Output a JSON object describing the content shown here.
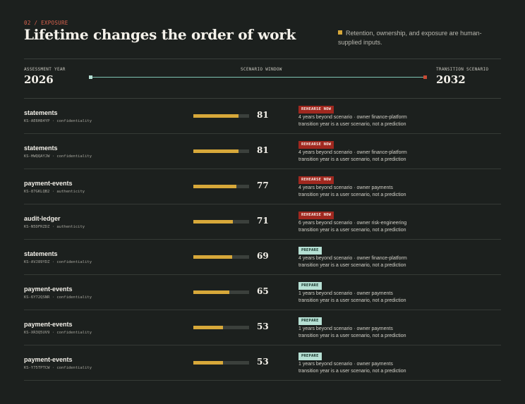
{
  "header": {
    "eyebrow": "02 / EXPOSURE",
    "title": "Lifetime changes the order of work",
    "note": "Retention, ownership, and exposure are human-supplied inputs."
  },
  "scenario": {
    "assessment_label": "ASSESSMENT YEAR",
    "assessment_year": "2026",
    "window_label": "SCENARIO WINDOW",
    "transition_label": "TRANSITION SCENARIO",
    "transition_year": "2032"
  },
  "colors": {
    "background": "#1c201e",
    "accent_amber": "#d7a83a",
    "rehearse_red": "#a0281f",
    "prepare_mint": "#b6e0d4"
  },
  "rows": [
    {
      "name": "statements",
      "meta": "KS-AE6H84YP · confidentiality",
      "score": "81",
      "level": 0.81,
      "badge": "REHEARSE NOW",
      "badge_type": "now",
      "line1": "4 years beyond scenario · owner finance-platform",
      "line2": "transition year is a user scenario, not a prediction"
    },
    {
      "name": "statements",
      "meta": "KS-HWQQAYJW · confidentiality",
      "score": "81",
      "level": 0.81,
      "badge": "REHEARSE NOW",
      "badge_type": "now",
      "line1": "4 years beyond scenario · owner finance-platform",
      "line2": "transition year is a user scenario, not a prediction"
    },
    {
      "name": "payment-events",
      "meta": "KS-87GKLQB2 · authenticity",
      "score": "77",
      "level": 0.77,
      "badge": "REHEARSE NOW",
      "badge_type": "now",
      "line1": "4 years beyond scenario · owner payments",
      "line2": "transition year is a user scenario, not a prediction"
    },
    {
      "name": "audit-ledger",
      "meta": "KS-N5DFRZDZ · authenticity",
      "score": "71",
      "level": 0.71,
      "badge": "REHEARSE NOW",
      "badge_type": "now",
      "line1": "6 years beyond scenario · owner risk-engineering",
      "line2": "transition year is a user scenario, not a prediction"
    },
    {
      "name": "statements",
      "meta": "KS-AVJ89YDZ · confidentiality",
      "score": "69",
      "level": 0.69,
      "badge": "PREPARE",
      "badge_type": "prep",
      "line1": "4 years beyond scenario · owner finance-platform",
      "line2": "transition year is a user scenario, not a prediction"
    },
    {
      "name": "payment-events",
      "meta": "KS-6Y72QSNR · confidentiality",
      "score": "65",
      "level": 0.65,
      "badge": "PREPARE",
      "badge_type": "prep",
      "line1": "1 years beyond scenario · owner payments",
      "line2": "transition year is a user scenario, not a prediction"
    },
    {
      "name": "payment-events",
      "meta": "KS-XR3Q5UV9 · confidentiality",
      "score": "53",
      "level": 0.53,
      "badge": "PREPARE",
      "badge_type": "prep",
      "line1": "1 years beyond scenario · owner payments",
      "line2": "transition year is a user scenario, not a prediction"
    },
    {
      "name": "payment-events",
      "meta": "KS-Y75TPTCW · confidentiality",
      "score": "53",
      "level": 0.53,
      "badge": "PREPARE",
      "badge_type": "prep",
      "line1": "1 years beyond scenario · owner payments",
      "line2": "transition year is a user scenario, not a prediction"
    }
  ]
}
